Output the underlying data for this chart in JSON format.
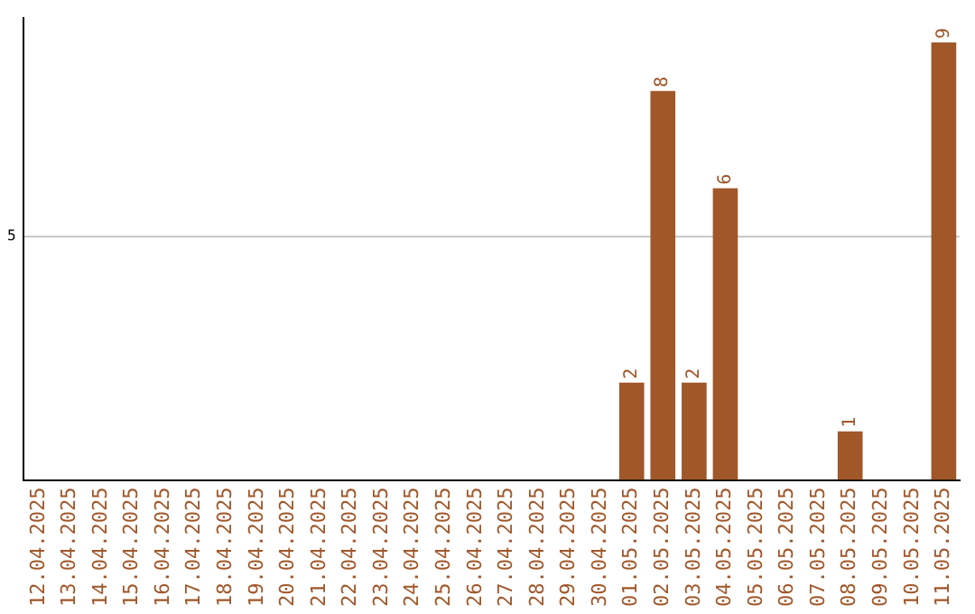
{
  "chart_data": {
    "type": "bar",
    "categories": [
      "12.04.2025",
      "13.04.2025",
      "14.04.2025",
      "15.04.2025",
      "16.04.2025",
      "17.04.2025",
      "18.04.2025",
      "19.04.2025",
      "20.04.2025",
      "21.04.2025",
      "22.04.2025",
      "23.04.2025",
      "24.04.2025",
      "25.04.2025",
      "26.04.2025",
      "27.04.2025",
      "28.04.2025",
      "29.04.2025",
      "30.04.2025",
      "01.05.2025",
      "02.05.2025",
      "03.05.2025",
      "04.05.2025",
      "05.05.2025",
      "06.05.2025",
      "07.05.2025",
      "08.05.2025",
      "09.05.2025",
      "10.05.2025",
      "11.05.2025"
    ],
    "values": [
      null,
      null,
      null,
      null,
      null,
      null,
      null,
      null,
      null,
      null,
      null,
      null,
      null,
      null,
      null,
      null,
      null,
      null,
      null,
      2,
      8,
      2,
      6,
      null,
      null,
      null,
      1,
      null,
      null,
      9
    ],
    "color": "#a0572a",
    "ylim": [
      0,
      9.5
    ],
    "yticks": [
      5
    ],
    "grid": "y",
    "legend": false,
    "data_labels": true
  }
}
